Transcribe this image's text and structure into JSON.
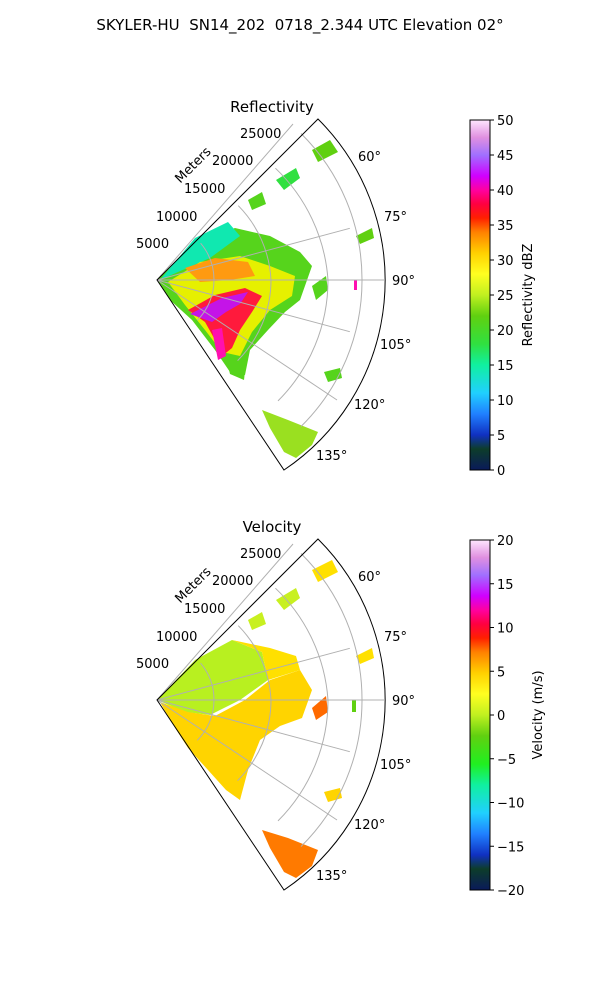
{
  "title": "SKYLER-HU  SN14_202  0718_2.344 UTC Elevation 02°",
  "chart_data": [
    {
      "type": "heatmap",
      "title": "Reflectivity",
      "radial_label": "Meters",
      "radial_ticks": [
        "5000",
        "10000",
        "15000",
        "20000",
        "25000"
      ],
      "radial_values": [
        5000,
        10000,
        15000,
        20000,
        25000
      ],
      "rmax": 30000,
      "angle_ticks": [
        "60°",
        "75°",
        "90°",
        "105°",
        "120°",
        "135°"
      ],
      "angle_values": [
        60,
        75,
        90,
        105,
        120,
        135
      ],
      "theta_range": [
        45,
        135
      ],
      "colorbar": {
        "label": "Reflectivity dBZ",
        "range": [
          0,
          50
        ],
        "ticks": [
          "0",
          "5",
          "10",
          "15",
          "20",
          "25",
          "30",
          "35",
          "40",
          "45",
          "50"
        ],
        "tick_values": [
          0,
          5,
          10,
          15,
          20,
          25,
          30,
          35,
          40,
          45,
          50
        ]
      },
      "grid": true
    },
    {
      "type": "heatmap",
      "title": "Velocity",
      "radial_label": "Meters",
      "radial_ticks": [
        "5000",
        "10000",
        "15000",
        "20000",
        "25000"
      ],
      "radial_values": [
        5000,
        10000,
        15000,
        20000,
        25000
      ],
      "rmax": 30000,
      "angle_ticks": [
        "60°",
        "75°",
        "90°",
        "105°",
        "120°",
        "135°"
      ],
      "angle_values": [
        60,
        75,
        90,
        105,
        120,
        135
      ],
      "theta_range": [
        45,
        135
      ],
      "colorbar": {
        "label": "Velocity (m/s)",
        "range": [
          -20,
          20
        ],
        "ticks": [
          "−20",
          "−15",
          "−10",
          "−5",
          "0",
          "5",
          "10",
          "15",
          "20"
        ],
        "tick_values": [
          -20,
          -15,
          -10,
          -5,
          0,
          5,
          10,
          15,
          20
        ]
      },
      "grid": true
    }
  ]
}
